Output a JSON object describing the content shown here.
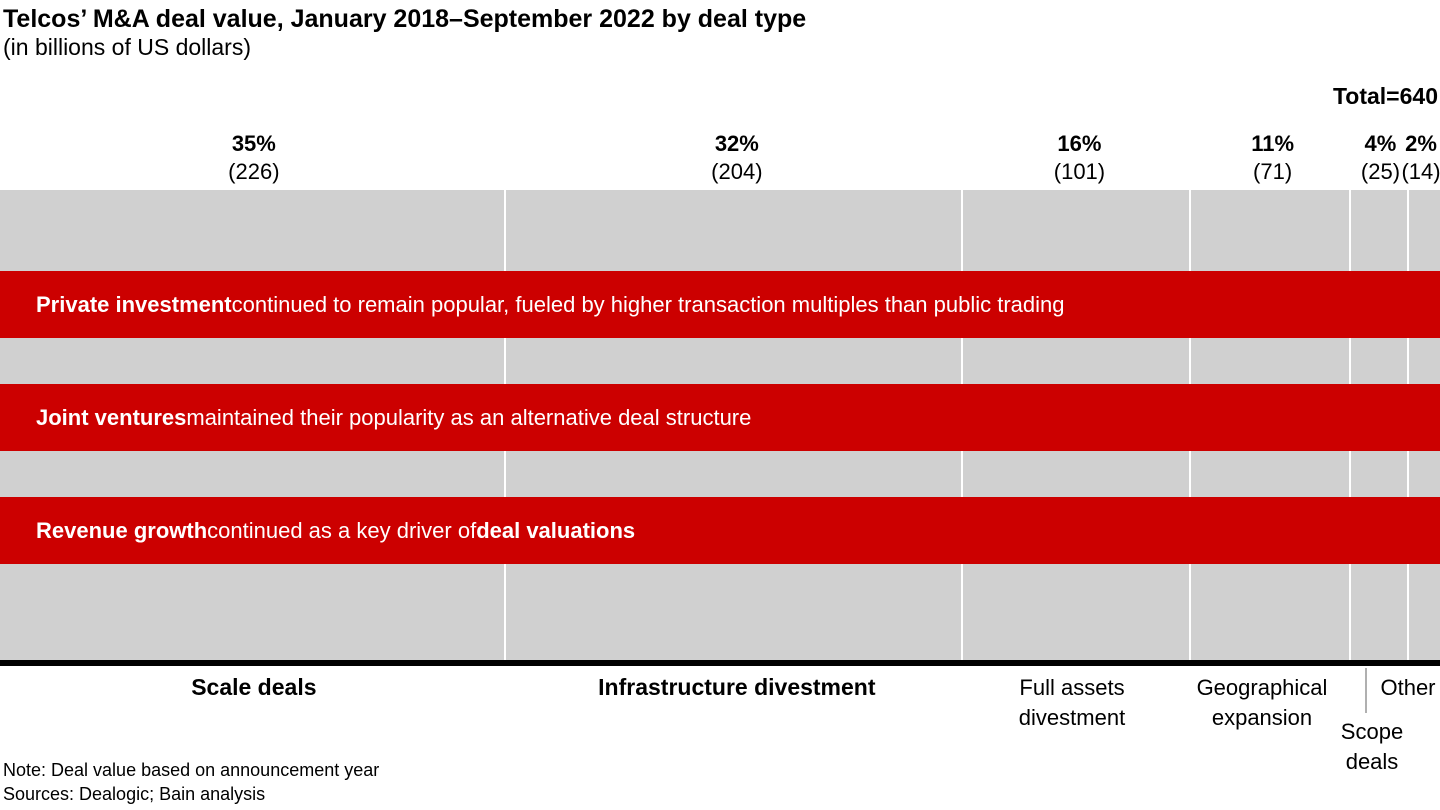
{
  "header": {
    "title": "Telcos’ M&A deal value, January 2018–September 2022 by deal type",
    "subtitle": "(in billions of US dollars)",
    "total_label": "Total=640"
  },
  "chart_data": {
    "type": "bar",
    "variant": "100-percent-composition-marimekko",
    "title": "Telcos’ M&A deal value, January 2018–September 2022 by deal type",
    "units": "billions of US dollars",
    "total": 640,
    "categories": [
      "Scale deals",
      "Infrastructure divestment",
      "Full assets divestment",
      "Geographical expansion",
      "Scope deals",
      "Other"
    ],
    "values": [
      226,
      204,
      101,
      71,
      25,
      14
    ],
    "percent_labels": [
      "35%",
      "32%",
      "16%",
      "11%",
      "4%",
      "2%"
    ],
    "value_labels": [
      "(226)",
      "(204)",
      "(101)",
      "(71)",
      "(25)",
      "(14)"
    ],
    "category_emphasis": [
      true,
      true,
      false,
      false,
      false,
      false
    ],
    "legend_position": "none",
    "grid": false,
    "colors": {
      "bar_gray": "#d0d0d0",
      "annotation_red": "#cc0000",
      "annotation_text": "#ffffff",
      "baseline_black": "#000000",
      "divider_gray": "#b0b0b0"
    },
    "annotations": [
      {
        "segments": [
          {
            "text": "Private investment",
            "bold": true
          },
          {
            "text": " continued to remain popular, fueled by higher transaction multiples than public trading",
            "bold": false
          }
        ]
      },
      {
        "segments": [
          {
            "text": "Joint ventures",
            "bold": true
          },
          {
            "text": " maintained their popularity as an alternative deal structure",
            "bold": false
          }
        ]
      },
      {
        "segments": [
          {
            "text": "Revenue growth",
            "bold": true
          },
          {
            "text": " continued as a key driver of ",
            "bold": false
          },
          {
            "text": "deal valuations",
            "bold": true
          }
        ]
      }
    ]
  },
  "footer": {
    "note": "Note: Deal value based on announcement year",
    "sources": "Sources: Dealogic; Bain analysis"
  }
}
